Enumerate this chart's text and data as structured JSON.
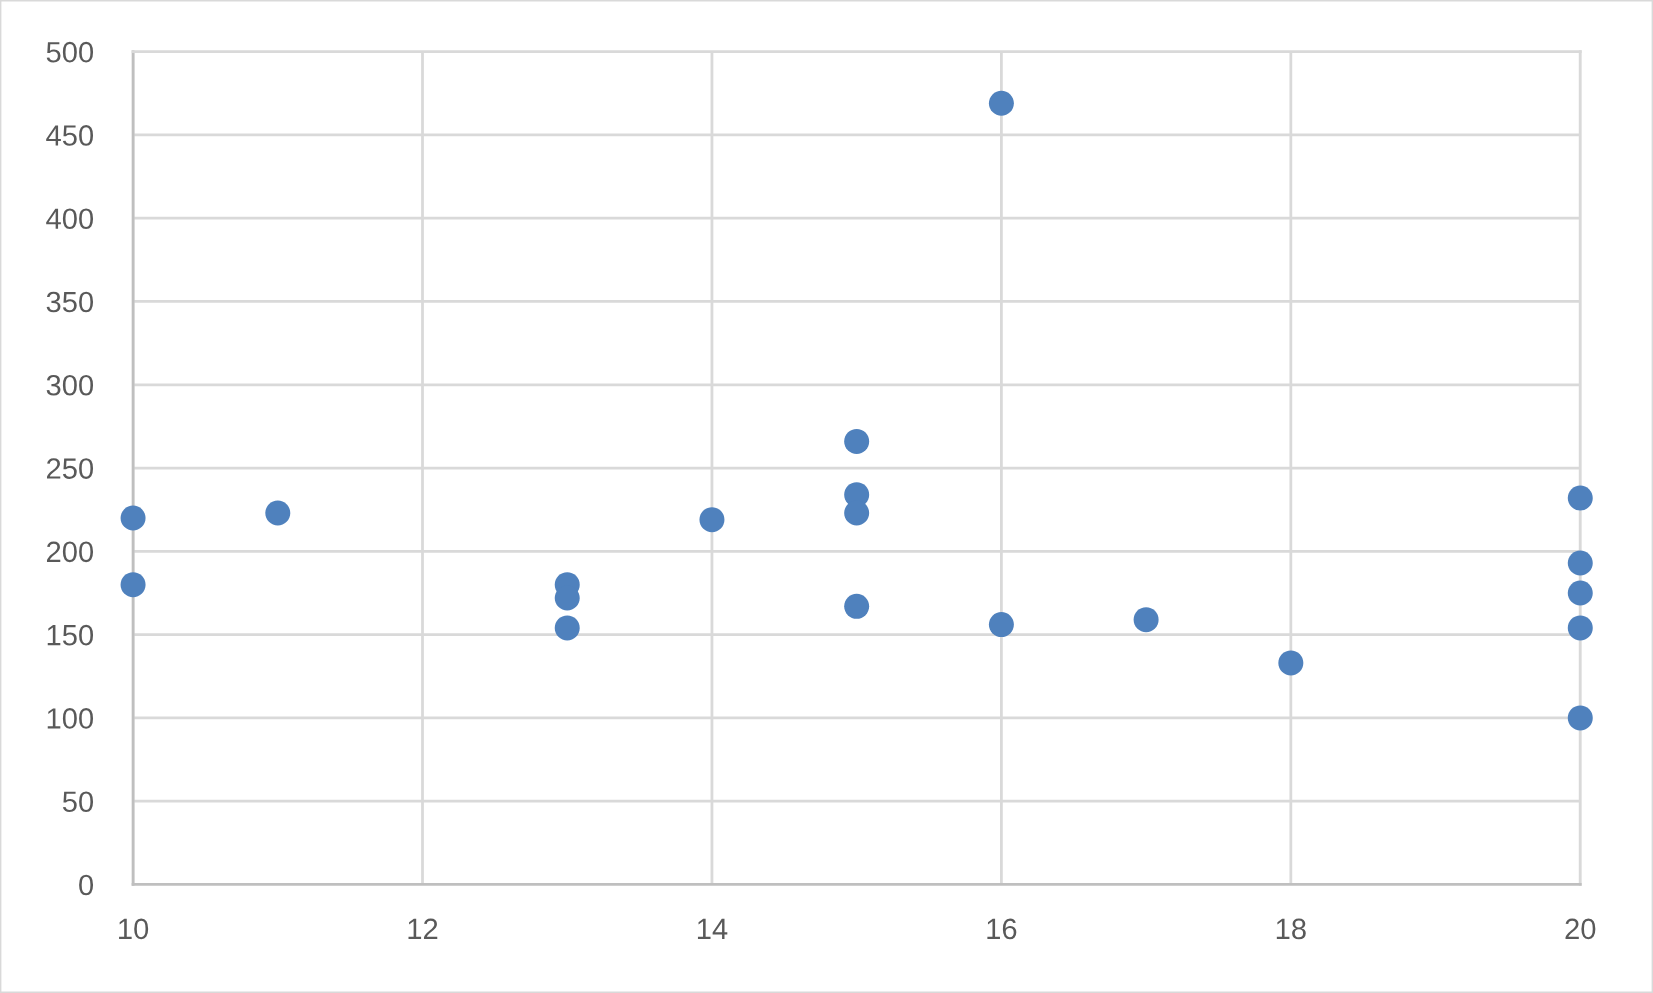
{
  "chart_data": {
    "type": "scatter",
    "x": [
      10,
      10,
      11,
      13,
      13,
      13,
      14,
      15,
      15,
      15,
      15,
      16,
      16,
      17,
      18,
      20,
      20,
      20,
      20,
      20
    ],
    "values": [
      220,
      180,
      223,
      180,
      172,
      154,
      219,
      266,
      234,
      223,
      167,
      469,
      156,
      159,
      133,
      232,
      193,
      175,
      154,
      100
    ],
    "color": "#4f81bd",
    "marker": "circle",
    "xlim": [
      10,
      20
    ],
    "ylim": [
      0,
      500
    ],
    "xticks": [
      10,
      12,
      14,
      16,
      18,
      20
    ],
    "yticks": [
      0,
      50,
      100,
      150,
      200,
      250,
      300,
      350,
      400,
      450,
      500
    ],
    "grid": true
  }
}
